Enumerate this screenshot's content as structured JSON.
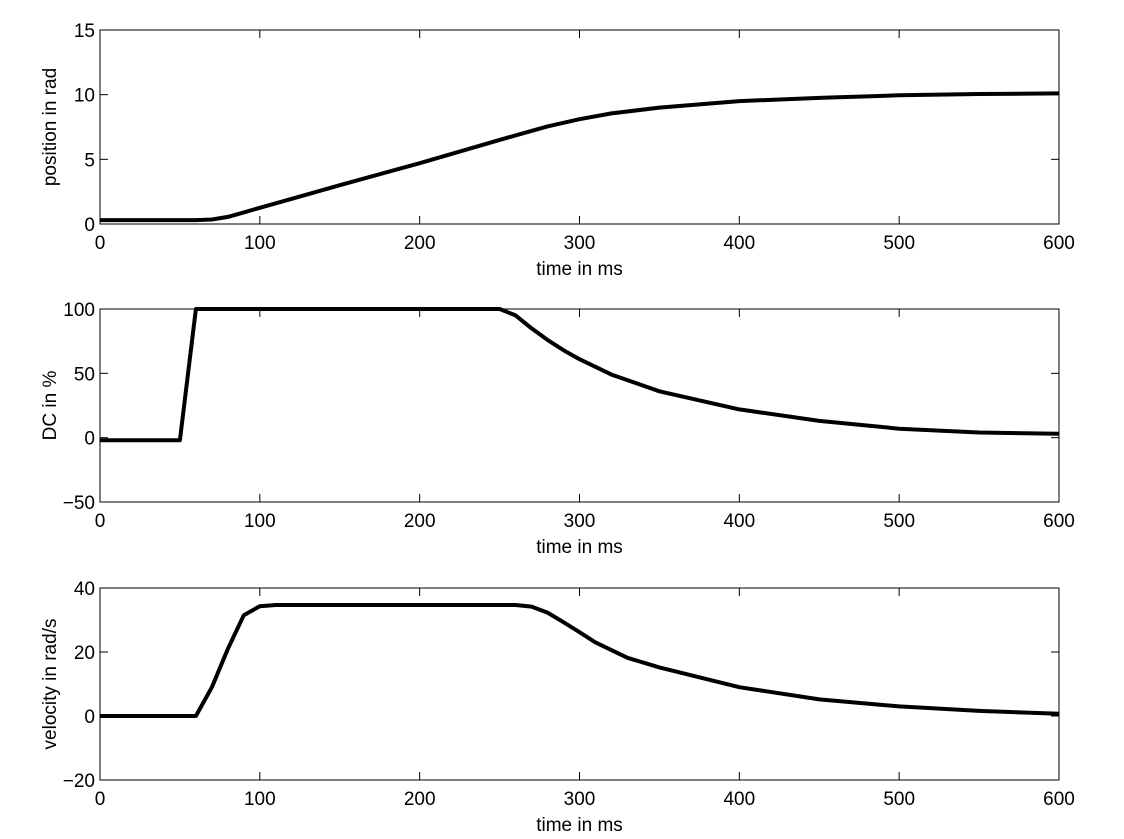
{
  "chart_data": [
    {
      "type": "line",
      "xlabel": "time in ms",
      "ylabel": "position in rad",
      "xlim": [
        0,
        600
      ],
      "ylim": [
        0,
        15
      ],
      "xticks": [
        0,
        100,
        200,
        300,
        400,
        500,
        600
      ],
      "yticks": [
        0,
        5,
        10,
        15
      ],
      "grid": false,
      "color": "#000000",
      "x": [
        0,
        50,
        60,
        70,
        80,
        90,
        100,
        120,
        150,
        200,
        250,
        280,
        300,
        320,
        350,
        400,
        450,
        500,
        550,
        600
      ],
      "y": [
        0.3,
        0.3,
        0.3,
        0.35,
        0.55,
        0.9,
        1.25,
        1.95,
        3.0,
        4.7,
        6.5,
        7.55,
        8.1,
        8.55,
        9.0,
        9.5,
        9.75,
        9.95,
        10.05,
        10.1
      ]
    },
    {
      "type": "line",
      "xlabel": "time in ms",
      "ylabel": "DC in %",
      "xlim": [
        0,
        600
      ],
      "ylim": [
        -50,
        100
      ],
      "xticks": [
        0,
        100,
        200,
        300,
        400,
        500,
        600
      ],
      "yticks": [
        -50,
        0,
        50,
        100
      ],
      "grid": false,
      "color": "#000000",
      "x": [
        0,
        50,
        60,
        100,
        200,
        250,
        260,
        270,
        280,
        290,
        300,
        320,
        350,
        400,
        450,
        500,
        550,
        600
      ],
      "y": [
        -2,
        -2,
        100,
        100,
        100,
        100,
        95,
        85,
        76,
        68,
        61,
        49,
        36,
        22,
        13,
        7,
        4,
        3
      ]
    },
    {
      "type": "line",
      "xlabel": "time in ms",
      "ylabel": "velocity in rad/s",
      "xlim": [
        0,
        600
      ],
      "ylim": [
        -20,
        40
      ],
      "xticks": [
        0,
        100,
        200,
        300,
        400,
        500,
        600
      ],
      "yticks": [
        -20,
        0,
        20,
        40
      ],
      "grid": false,
      "color": "#000000",
      "x": [
        0,
        50,
        60,
        70,
        80,
        90,
        100,
        110,
        150,
        200,
        250,
        260,
        270,
        280,
        290,
        300,
        310,
        330,
        350,
        400,
        450,
        500,
        550,
        600
      ],
      "y": [
        0,
        0,
        0,
        9,
        21,
        31.5,
        34.3,
        34.7,
        34.7,
        34.7,
        34.7,
        34.7,
        34.2,
        32.3,
        29.3,
        26.2,
        23.0,
        18.2,
        15.2,
        9.0,
        5.2,
        3.0,
        1.6,
        0.7
      ]
    }
  ]
}
